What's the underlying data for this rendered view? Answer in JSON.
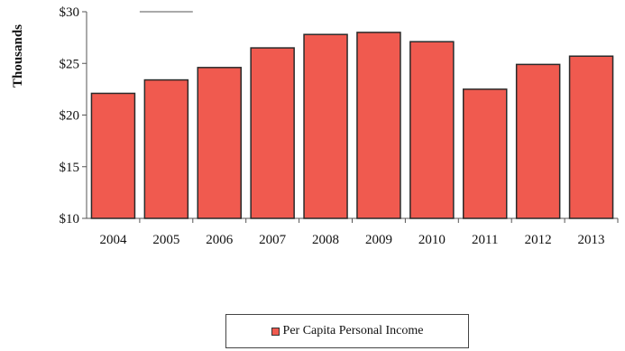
{
  "chart_data": {
    "type": "bar",
    "categories": [
      "2004",
      "2005",
      "2006",
      "2007",
      "2008",
      "2009",
      "2010",
      "2011",
      "2012",
      "2013"
    ],
    "series": [
      {
        "name": "Per Capita Personal Income",
        "values": [
          22.1,
          23.4,
          24.6,
          26.5,
          27.8,
          28.0,
          27.1,
          22.5,
          24.9,
          25.7
        ]
      }
    ],
    "ylabel": "Thousands",
    "xlabel": "",
    "yticks": [
      "$10",
      "$15",
      "$20",
      "$25",
      "$30"
    ],
    "ytick_values": [
      10,
      15,
      20,
      25,
      30
    ],
    "ylim": [
      10,
      30
    ],
    "grid": false,
    "legend_position": "bottom",
    "bar_color": "#f05a4f",
    "bar_edge_color": "#2a2a2a"
  }
}
